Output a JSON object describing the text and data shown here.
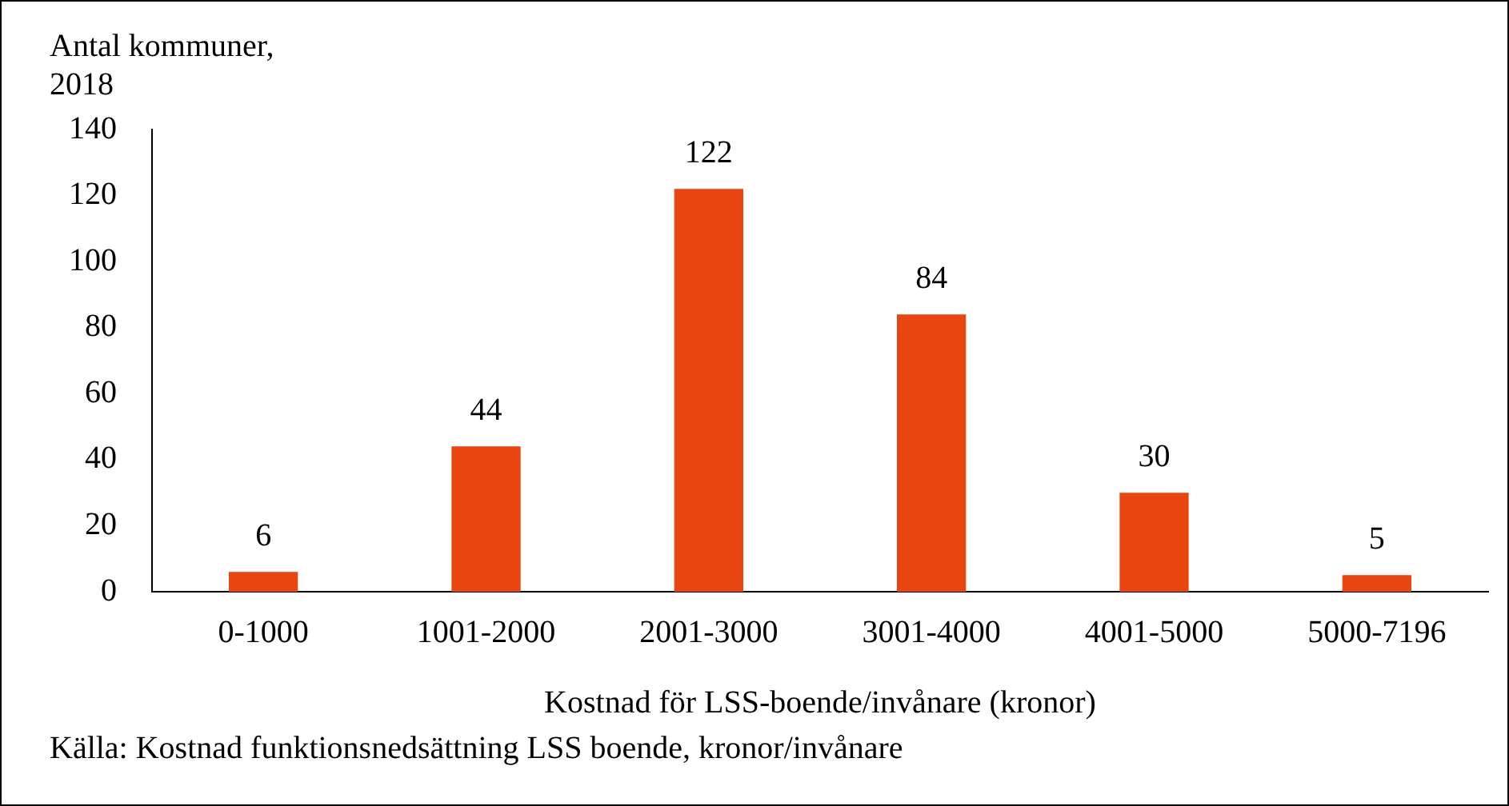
{
  "chart_data": {
    "type": "bar",
    "ylabel": "Antal kommuner, 2018",
    "xlabel": "Kostnad för LSS-boende/invånare (kronor)",
    "categories": [
      "0-1000",
      "1001-2000",
      "2001-3000",
      "3001-4000",
      "4001-5000",
      "5000-7196"
    ],
    "values": [
      6,
      44,
      122,
      84,
      30,
      5
    ],
    "color": "#e8450f",
    "ylim": [
      0,
      140
    ],
    "yticks": [
      0,
      20,
      40,
      60,
      80,
      100,
      120,
      140
    ],
    "grid": false,
    "data_labels": true,
    "legend": false,
    "annotations": [
      "Källa: Kostnad funktionsnedsättning LSS boende, kronor/invånare"
    ]
  }
}
